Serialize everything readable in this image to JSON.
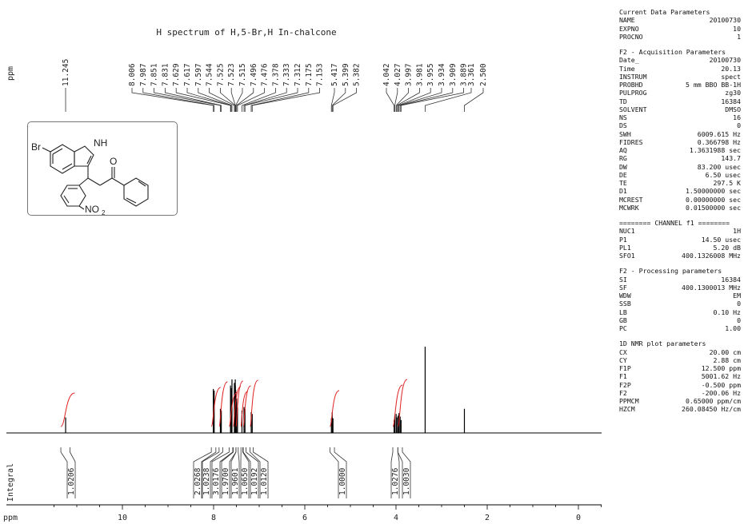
{
  "spectrum": {
    "title": "H spectrum of H,5-Br,H In-chalcone",
    "left_axis_label": "ppm",
    "integral_axis_label": "Integral",
    "bottom_axis_unit": "ppm"
  },
  "chart_data": {
    "type": "line",
    "title": "H spectrum of H,5-Br,H In-chalcone",
    "xlabel": "ppm",
    "xlim": [
      12.5,
      -0.5
    ],
    "x_ticks": [
      10,
      8,
      6,
      4,
      2,
      0
    ],
    "grid": false,
    "peak_labels": [
      "11.245",
      "8.006",
      "7.987",
      "7.851",
      "7.831",
      "7.629",
      "7.617",
      "7.597",
      "7.544",
      "7.525",
      "7.523",
      "7.515",
      "7.496",
      "7.476",
      "7.378",
      "7.333",
      "7.312",
      "7.175",
      "7.153",
      "5.417",
      "5.399",
      "5.382",
      "4.042",
      "4.027",
      "3.997",
      "3.981",
      "3.955",
      "3.934",
      "3.909",
      "3.889",
      "3.361",
      "2.500"
    ],
    "peaks": [
      {
        "x": 11.245,
        "height": 0.18
      },
      {
        "x": 8.006,
        "height": 0.51
      },
      {
        "x": 7.987,
        "height": 0.49
      },
      {
        "x": 7.851,
        "height": 0.28
      },
      {
        "x": 7.831,
        "height": 0.26
      },
      {
        "x": 7.629,
        "height": 0.55
      },
      {
        "x": 7.617,
        "height": 0.52
      },
      {
        "x": 7.597,
        "height": 0.62
      },
      {
        "x": 7.544,
        "height": 0.58
      },
      {
        "x": 7.525,
        "height": 0.62
      },
      {
        "x": 7.523,
        "height": 0.55
      },
      {
        "x": 7.515,
        "height": 0.5
      },
      {
        "x": 7.496,
        "height": 0.4
      },
      {
        "x": 7.476,
        "height": 0.3
      },
      {
        "x": 7.378,
        "height": 0.26
      },
      {
        "x": 7.333,
        "height": 0.3
      },
      {
        "x": 7.312,
        "height": 0.28
      },
      {
        "x": 7.175,
        "height": 0.24
      },
      {
        "x": 7.153,
        "height": 0.22
      },
      {
        "x": 5.417,
        "height": 0.17
      },
      {
        "x": 5.399,
        "height": 0.24
      },
      {
        "x": 5.382,
        "height": 0.17
      },
      {
        "x": 4.042,
        "height": 0.15
      },
      {
        "x": 4.027,
        "height": 0.2
      },
      {
        "x": 3.997,
        "height": 0.22
      },
      {
        "x": 3.981,
        "height": 0.18
      },
      {
        "x": 3.955,
        "height": 0.2
      },
      {
        "x": 3.934,
        "height": 0.23
      },
      {
        "x": 3.909,
        "height": 0.19
      },
      {
        "x": 3.889,
        "height": 0.15
      },
      {
        "x": 3.361,
        "height": 1.0
      },
      {
        "x": 2.5,
        "height": 0.28
      }
    ],
    "integrals": [
      {
        "from": 11.35,
        "to": 11.15,
        "value": "1.0206"
      },
      {
        "from": 8.05,
        "to": 7.95,
        "value": "2.0268"
      },
      {
        "from": 7.88,
        "to": 7.8,
        "value": "1.0238"
      },
      {
        "from": 7.66,
        "to": 7.58,
        "value": "3.0176"
      },
      {
        "from": 7.57,
        "to": 7.51,
        "value": "1.9700"
      },
      {
        "from": 7.51,
        "to": 7.46,
        "value": "1.9601"
      },
      {
        "from": 7.4,
        "to": 7.36,
        "value": "1.0650"
      },
      {
        "from": 7.35,
        "to": 7.29,
        "value": "1.0192"
      },
      {
        "from": 7.2,
        "to": 7.13,
        "value": "1.0120"
      },
      {
        "from": 5.45,
        "to": 5.35,
        "value": "1.0000"
      },
      {
        "from": 4.07,
        "to": 3.96,
        "value": "1.0276"
      },
      {
        "from": 3.96,
        "to": 3.86,
        "value": "1.0030"
      }
    ]
  },
  "molecule": {
    "substituent_br": "Br",
    "substituent_nh": "NH",
    "substituent_o": "O",
    "substituent_no2": "NO",
    "substituent_no2_sub": "2"
  },
  "params": {
    "current": {
      "title": "Current Data Parameters",
      "rows": [
        [
          "NAME",
          "20100730"
        ],
        [
          "EXPNO",
          "10"
        ],
        [
          "PROCNO",
          "1"
        ]
      ]
    },
    "acq": {
      "title": "F2 - Acquisition Parameters",
      "rows": [
        [
          "Date_",
          "20100730"
        ],
        [
          "Time",
          "20.13"
        ],
        [
          "INSTRUM",
          "spect"
        ],
        [
          "PROBHD",
          "5 mm BBO BB-1H"
        ],
        [
          "PULPROG",
          "zg30"
        ],
        [
          "TD",
          "16384"
        ],
        [
          "SOLVENT",
          "DMSO"
        ],
        [
          "NS",
          "16"
        ],
        [
          "DS",
          "0"
        ],
        [
          "SWH",
          "6009.615 Hz"
        ],
        [
          "FIDRES",
          "0.366798 Hz"
        ],
        [
          "AQ",
          "1.3631988 sec"
        ],
        [
          "RG",
          "143.7"
        ],
        [
          "DW",
          "83.200 usec"
        ],
        [
          "DE",
          "6.50 usec"
        ],
        [
          "TE",
          "297.5 K"
        ],
        [
          "D1",
          "1.50000000 sec"
        ],
        [
          "MCREST",
          "0.00000000 sec"
        ],
        [
          "MCWRK",
          "0.01500000 sec"
        ]
      ]
    },
    "channel": {
      "title": "======== CHANNEL f1 ========",
      "rows": [
        [
          "NUC1",
          "1H"
        ],
        [
          "P1",
          "14.50 usec"
        ],
        [
          "PL1",
          "5.20 dB"
        ],
        [
          "SFO1",
          "400.1326008 MHz"
        ]
      ]
    },
    "proc": {
      "title": "F2 - Processing parameters",
      "rows": [
        [
          "SI",
          "16384"
        ],
        [
          "SF",
          "400.1300013 MHz"
        ],
        [
          "WDW",
          "EM"
        ],
        [
          "SSB",
          "0"
        ],
        [
          "LB",
          "0.10 Hz"
        ],
        [
          "GB",
          "0"
        ],
        [
          "PC",
          "1.00"
        ]
      ]
    },
    "plot": {
      "title": "1D NMR plot parameters",
      "rows": [
        [
          "CX",
          "20.00 cm"
        ],
        [
          "CY",
          "2.88 cm"
        ],
        [
          "F1P",
          "12.500 ppm"
        ],
        [
          "F1",
          "5001.62 Hz"
        ],
        [
          "F2P",
          "-0.500 ppm"
        ],
        [
          "F2",
          "-200.06 Hz"
        ],
        [
          "PPMCM",
          "0.65000 ppm/cm"
        ],
        [
          "HZCM",
          "260.08450 Hz/cm"
        ]
      ]
    }
  },
  "colors": {
    "spectrum_line": "#000000",
    "integral_curve": "#e02020",
    "text": "#222222",
    "box_border": "#777777"
  }
}
